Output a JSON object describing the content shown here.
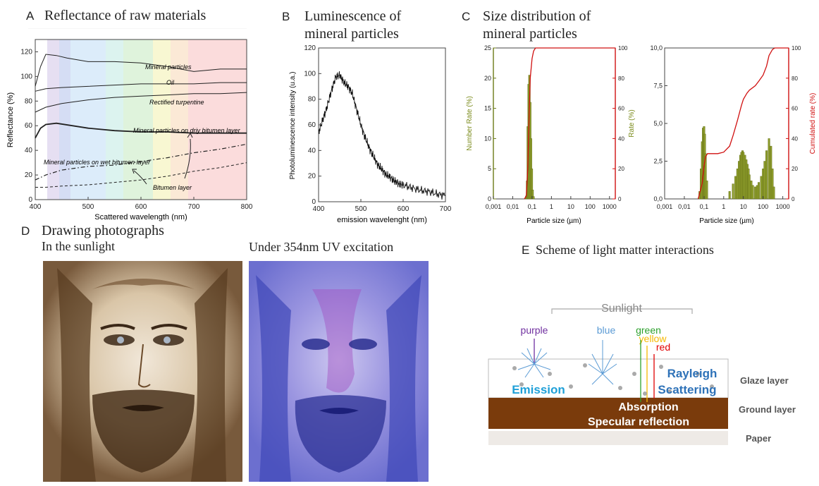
{
  "panels": {
    "A": {
      "letter": "A",
      "title": "Reflectance of raw materials"
    },
    "B": {
      "letter": "B",
      "title_line1": "Luminescence of",
      "title_line2": "mineral particles"
    },
    "C": {
      "letter": "C",
      "title_line1": "Size distribution of",
      "title_line2": "mineral particles"
    },
    "D": {
      "letter": "D",
      "title": "Drawing photographs",
      "left_caption": "In the sunlight",
      "right_caption": "Under 354nm UV excitation"
    },
    "E": {
      "letter": "E",
      "title": "Scheme of light matter interactions"
    }
  },
  "chart_data": [
    {
      "id": "A",
      "type": "line",
      "xlabel": "Scattered wavelength (nm)",
      "ylabel": "Reflectance (%)",
      "xlim": [
        400,
        800
      ],
      "ylim": [
        0,
        130
      ],
      "xticks": [
        "400",
        "500",
        "600",
        "700",
        "800"
      ],
      "yticks": [
        "0",
        "20",
        "40",
        "60",
        "80",
        "100",
        "120"
      ],
      "series": [
        {
          "name": "Mineral particles",
          "x": [
            400,
            410,
            420,
            440,
            460,
            500,
            550,
            600,
            650,
            700,
            750,
            800
          ],
          "y": [
            92,
            108,
            118,
            117,
            115,
            112,
            112,
            111,
            108,
            104,
            106,
            106
          ]
        },
        {
          "name": "Oil",
          "x": [
            400,
            420,
            450,
            500,
            550,
            600,
            650,
            700,
            750,
            800
          ],
          "y": [
            88,
            90,
            91,
            92,
            93,
            94,
            94,
            94,
            95,
            95
          ]
        },
        {
          "name": "Rectified turpentine",
          "x": [
            400,
            420,
            450,
            500,
            550,
            600,
            650,
            700,
            750,
            800
          ],
          "y": [
            71,
            75,
            78,
            81,
            83,
            84,
            85,
            86,
            86,
            87
          ]
        },
        {
          "name": "Mineral particles on driy bitumen layer",
          "x": [
            400,
            410,
            420,
            440,
            470,
            500,
            550,
            600,
            650,
            700,
            750,
            800
          ],
          "y": [
            50,
            58,
            61,
            62,
            60,
            58,
            56,
            55,
            55,
            54,
            54,
            54
          ]
        },
        {
          "name": "Mineral particles on wet bitumen layer",
          "x": [
            400,
            420,
            450,
            500,
            550,
            600,
            650,
            700,
            750,
            800
          ],
          "y": [
            16,
            20,
            24,
            27,
            28,
            31,
            34,
            38,
            41,
            45
          ]
        },
        {
          "name": "Bitumen layer",
          "x": [
            400,
            420,
            450,
            500,
            550,
            600,
            650,
            700,
            750,
            800
          ],
          "y": [
            10,
            10,
            11,
            12,
            14,
            16,
            19,
            23,
            26,
            30
          ]
        }
      ]
    },
    {
      "id": "B",
      "type": "line",
      "xlabel": "emission wavelenght (nm)",
      "ylabel": "Photoluminescence intensity (u.a.)",
      "xlim": [
        400,
        700
      ],
      "ylim": [
        0,
        120
      ],
      "xticks": [
        "400",
        "500",
        "600",
        "700"
      ],
      "yticks": [
        "0",
        "20",
        "40",
        "60",
        "80",
        "100",
        "120"
      ],
      "series": [
        {
          "x": [
            400,
            410,
            420,
            430,
            440,
            450,
            460,
            470,
            480,
            490,
            500,
            510,
            520,
            530,
            540,
            550,
            560,
            570,
            580,
            590,
            600,
            620,
            640,
            660,
            680,
            700
          ],
          "y": [
            54,
            64,
            74,
            86,
            97,
            99,
            93,
            90,
            84,
            72,
            60,
            50,
            42,
            35,
            29,
            25,
            21,
            19,
            16,
            14,
            13,
            11,
            9,
            8,
            6,
            5
          ]
        }
      ]
    },
    {
      "id": "C1",
      "type": "bar",
      "xlabel": "Particle size (µm)",
      "ylabel_left": "Number Rate (%)",
      "ylabel_right": "Rate (%)",
      "xticks": [
        "0,001",
        "0,01",
        "0,1",
        "1",
        "10",
        "100",
        "1000"
      ],
      "yticks_left": [
        "0",
        "5",
        "10",
        "15",
        "20",
        "25"
      ],
      "yticks_right": [
        "0",
        "20",
        "40",
        "60",
        "80",
        "100"
      ],
      "bars": {
        "x": [
          0.05,
          0.055,
          0.06,
          0.066,
          0.073,
          0.08,
          0.088,
          0.097,
          0.107,
          0.118
        ],
        "y": [
          0.5,
          3,
          12,
          19,
          20.5,
          16,
          10,
          5,
          1.5,
          0.4
        ]
      },
      "cumulative": {
        "x": [
          0.04,
          0.05,
          0.06,
          0.07,
          0.08,
          0.1,
          0.12,
          0.15,
          1,
          10,
          100,
          2000
        ],
        "y": [
          0,
          2,
          20,
          55,
          80,
          93,
          98,
          100,
          100,
          100,
          100,
          100
        ]
      }
    },
    {
      "id": "C2",
      "type": "bar",
      "xlabel": "Particle size (µm)",
      "ylabel_right": "Cumulated rate (%)",
      "xticks": [
        "0,001",
        "0,01",
        "0,1",
        "1",
        "10",
        "100",
        "1000"
      ],
      "yticks_left": [
        "0,0",
        "2,5",
        "5,0",
        "7,5",
        "10,0"
      ],
      "yticks_right": [
        "0",
        "20",
        "40",
        "60",
        "80",
        "100"
      ],
      "bars": {
        "x": [
          0.06,
          0.07,
          0.08,
          0.09,
          0.1,
          0.11,
          0.12,
          0.14,
          2,
          3,
          4,
          5,
          6,
          7,
          8,
          9,
          10,
          12,
          14,
          16,
          18,
          20,
          25,
          30,
          40,
          50,
          60,
          80,
          100,
          120,
          150,
          200,
          250,
          300,
          350
        ],
        "y": [
          0.5,
          2,
          3.8,
          4.7,
          4.8,
          4.3,
          3,
          1.2,
          0.5,
          1,
          1.5,
          2,
          2.5,
          2.9,
          3.1,
          3.2,
          3.1,
          2.9,
          2.6,
          2.3,
          2,
          1.6,
          1.2,
          0.9,
          0.8,
          0.9,
          1.1,
          1.5,
          2,
          2.5,
          3.2,
          4,
          3.5,
          2,
          0.8
        ]
      },
      "cumulative": {
        "x": [
          0.05,
          0.08,
          0.1,
          0.12,
          0.15,
          0.2,
          0.5,
          1,
          2,
          3,
          5,
          8,
          10,
          15,
          20,
          40,
          60,
          100,
          150,
          200,
          300,
          400,
          600,
          1000,
          2000
        ],
        "y": [
          0,
          10,
          22,
          28,
          30,
          30,
          30,
          31,
          35,
          42,
          52,
          62,
          66,
          70,
          72,
          75,
          78,
          82,
          88,
          95,
          99,
          100,
          100,
          100,
          100
        ]
      }
    }
  ],
  "scheme": {
    "sunlight": "Sunlight",
    "colors_labels": [
      "purple",
      "blue",
      "green",
      "yellow",
      "red"
    ],
    "colors_hex": [
      "#7030a0",
      "#5b9bd5",
      "#2ca02c",
      "#f5b800",
      "#e00000"
    ],
    "emission": "Emission",
    "rayleigh": "Rayleigh",
    "scattering": "Scattering",
    "absorption": "Absorption",
    "specular": "Specular reflection",
    "layers": [
      "Glaze layer",
      "Ground layer",
      "Paper"
    ]
  }
}
